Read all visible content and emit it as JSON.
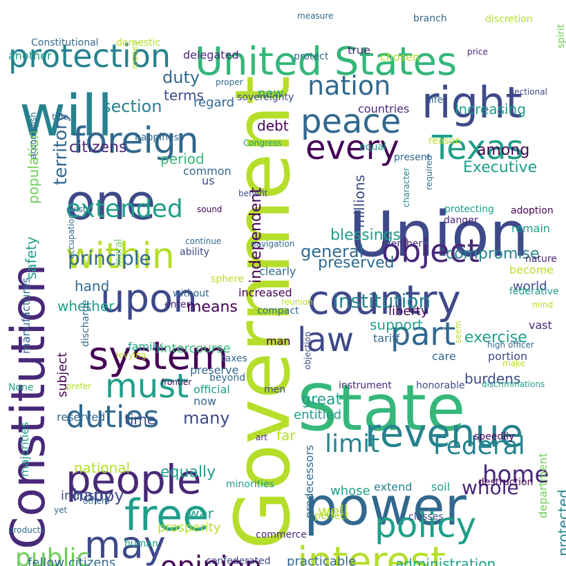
{
  "palette": {
    "dark_purple": "#440154",
    "indigo": "#482878",
    "blue": "#3e4989",
    "steel": "#31688e",
    "teal": "#26828e",
    "sea": "#1f9e89",
    "green": "#35b779",
    "light_green": "#6ece58",
    "lime": "#b5de2b",
    "yellow": "#fde725"
  },
  "words": [
    "Government",
    "State",
    "Union",
    "power",
    "Constitution",
    "United States",
    "interest",
    "will",
    "people",
    "country",
    "right",
    "revenue",
    "one",
    "every",
    "upon",
    "system",
    "foreign",
    "Texas",
    "protection",
    "free",
    "peace",
    "within",
    "may",
    "law",
    "policy",
    "part",
    "object",
    "nation",
    "must",
    "duties",
    "opinion",
    "limit",
    "Federal",
    "extended",
    "public",
    "home",
    "principle",
    "institution",
    "whole",
    "citizens",
    "Executive",
    "increasing",
    "general",
    "section",
    "duty",
    "preserved",
    "blessings",
    "independent",
    "territory",
    "population",
    "millions",
    "means",
    "among",
    "compromise",
    "exercise",
    "burdens",
    "great",
    "terms",
    "hand",
    "whether",
    "debt",
    "support",
    "happy",
    "many",
    "equally",
    "war",
    "well",
    "world",
    "administration",
    "protected",
    "department",
    "fellow citizens",
    "period",
    "new",
    "regard",
    "life",
    "countries",
    "common",
    "us",
    "national",
    "industry",
    "prosperity",
    "practicable",
    "whose",
    "entitled",
    "far",
    "soil",
    "extend",
    "tariff",
    "liberty",
    "family",
    "intercourse",
    "preserve",
    "subject",
    "time",
    "reserved",
    "safety",
    "man",
    "taxes",
    "beyond",
    "official",
    "now",
    "instrument",
    "honorable",
    "vast",
    "portion",
    "care",
    "become",
    "remain",
    "manufactures",
    "majorities",
    "predecessors",
    "another",
    "delegated",
    "protect",
    "true",
    "chosen",
    "Constitutional",
    "domestic",
    "happiness",
    "sovereignty",
    "equal",
    "present",
    "reason",
    "sphere",
    "moral",
    "clearly",
    "increased",
    "compact",
    "federative",
    "mind",
    "nature",
    "ability",
    "without",
    "enter",
    "occupation",
    "exist",
    "sound",
    "navigation",
    "member",
    "adoption",
    "sectional",
    "price",
    "spirit",
    "discretion",
    "branch",
    "measure",
    "money",
    "proper",
    "title",
    "accomplish",
    "Congress",
    "benefit",
    "character",
    "required",
    "danger",
    "protecting",
    "continue",
    "reunion",
    "discharge",
    "levying",
    "seem",
    "high officer",
    "make",
    "frontier",
    "prefer",
    "None",
    "men",
    "objection",
    "discriminations",
    "speedily",
    "art",
    "destruction",
    "minorities",
    "others",
    "yet",
    "products",
    "human",
    "commerce",
    "confederated",
    "perfect",
    "classes"
  ]
}
